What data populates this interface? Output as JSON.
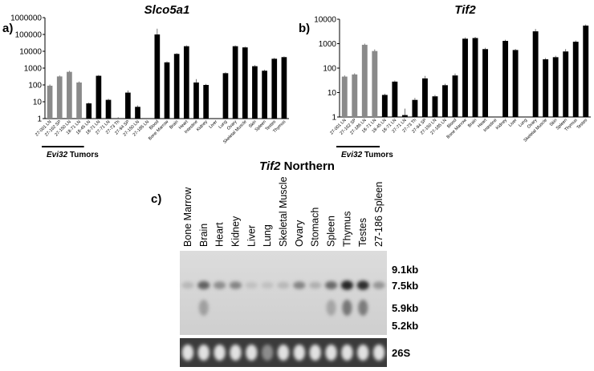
{
  "panel_labels": {
    "a": "a)",
    "b": "b)",
    "c": "c)"
  },
  "northern": {
    "title_italic": "Tif2",
    "title_rest": " Northern",
    "lanes": [
      "Bone Marrow",
      "Brain",
      "Heart",
      "Kidney",
      "Liver",
      "Lung",
      "Skeletal Muscle",
      "Ovary",
      "Stomach",
      "Spleen",
      "Thymus",
      "Testes",
      "27-186 Spleen"
    ],
    "band_intensity_7_5kb": [
      0.1,
      0.6,
      0.35,
      0.4,
      0.05,
      0.05,
      0.1,
      0.4,
      0.15,
      0.55,
      0.95,
      0.9,
      0.3
    ],
    "markers": [
      "9.1kb",
      "7.5kb",
      "5.9kb",
      "5.2kb"
    ],
    "loading_label": "26S"
  },
  "chart_data": [
    {
      "type": "bar",
      "title": "Slco5a1",
      "yscale": "log",
      "ylim": [
        1,
        1000000
      ],
      "yticks": [
        "1",
        "10",
        "100",
        "1000",
        "10000",
        "100000",
        "1000000"
      ],
      "group_label_italic": "Evi32",
      "group_label_rest": " Tumors",
      "categories": [
        "27-001 LN",
        "27-162 SP",
        "27-150 LN",
        "18-71 LN",
        "18-45 LN",
        "18-71 LN",
        "27-71 LN",
        "27-73 Th",
        "27-94 SP",
        "27-150 LN",
        "27-185 LN",
        "Blood",
        "Bone Marrow",
        "Brain",
        "Heart",
        "Intestine",
        "Kidney",
        "Liver",
        "Lung",
        "Ovary",
        "Skeletal Muscle",
        "Skin",
        "Spleen",
        "Testes",
        "Thymus"
      ],
      "values": [
        90,
        320,
        600,
        140,
        8,
        350,
        13,
        1,
        35,
        5,
        0,
        100000,
        2200,
        7000,
        20000,
        140,
        100,
        0,
        500,
        20000,
        17000,
        1300,
        700,
        3600,
        4500
      ],
      "errors": [
        15,
        40,
        80,
        20,
        1,
        40,
        2,
        0.2,
        12,
        1,
        0,
        120000,
        300,
        800,
        2500,
        80,
        15,
        0,
        60,
        2500,
        2000,
        200,
        100,
        500,
        500
      ],
      "tumor_count": 11
    },
    {
      "type": "bar",
      "title": "Tif2",
      "yscale": "log",
      "ylim": [
        1,
        10000
      ],
      "yticks": [
        "1",
        "10",
        "100",
        "1000",
        "10000"
      ],
      "group_label_italic": "Evi32",
      "group_label_rest": " Tumors",
      "categories": [
        "27-001 LN",
        "27-162 SP",
        "27-186 LN",
        "18-71 LN",
        "18-45 LN",
        "18-71 LN",
        "27-71 LN",
        "27-73 Th",
        "27-94 SP",
        "27-150 LN",
        "27-185 LN",
        "Blood",
        "Bone Marrow",
        "Brain",
        "Heart",
        "Intestine",
        "Kidney",
        "Liver",
        "Lung",
        "Ovary",
        "Skeletal Muscle",
        "Skin",
        "Spleen",
        "Thymus",
        "Testes"
      ],
      "values": [
        45,
        55,
        900,
        500,
        8,
        28,
        1.2,
        5,
        38,
        7,
        20,
        50,
        1600,
        1700,
        600,
        0,
        1300,
        550,
        0,
        3200,
        230,
        280,
        480,
        1200,
        5500
      ],
      "errors": [
        5,
        6,
        100,
        80,
        1,
        3,
        1,
        1,
        10,
        1,
        3,
        10,
        200,
        200,
        80,
        0,
        150,
        60,
        0,
        800,
        30,
        40,
        120,
        150,
        600
      ],
      "tumor_count": 4
    }
  ]
}
